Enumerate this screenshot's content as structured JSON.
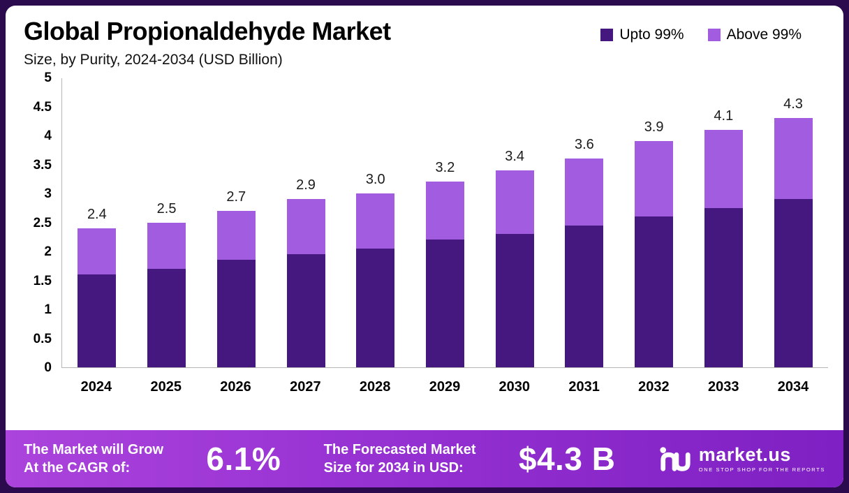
{
  "header": {
    "title": "Global Propionaldehyde Market",
    "subtitle": "Size, by Purity, 2024-2034 (USD Billion)"
  },
  "legend": [
    {
      "label": "Upto 99%",
      "color": "#44187f"
    },
    {
      "label": "Above 99%",
      "color": "#a15ce0"
    }
  ],
  "chart_data": {
    "type": "bar",
    "stacked": true,
    "title": "Global Propionaldehyde Market Size, by Purity, 2024-2034 (USD Billion)",
    "categories": [
      "2024",
      "2025",
      "2026",
      "2027",
      "2028",
      "2029",
      "2030",
      "2031",
      "2032",
      "2033",
      "2034"
    ],
    "series": [
      {
        "name": "Upto 99%",
        "color": "#44187f",
        "values": [
          1.6,
          1.7,
          1.85,
          1.95,
          2.05,
          2.2,
          2.3,
          2.45,
          2.6,
          2.75,
          2.9
        ]
      },
      {
        "name": "Above 99%",
        "color": "#a15ce0",
        "values": [
          0.8,
          0.8,
          0.85,
          0.95,
          0.95,
          1.0,
          1.1,
          1.15,
          1.3,
          1.35,
          1.4
        ]
      }
    ],
    "totals": [
      2.4,
      2.5,
      2.7,
      2.9,
      3.0,
      3.2,
      3.4,
      3.6,
      3.9,
      4.1,
      4.3
    ],
    "total_labels": [
      "2.4",
      "2.5",
      "2.7",
      "2.9",
      "3.0",
      "3.2",
      "3.4",
      "3.6",
      "3.9",
      "4.1",
      "4.3"
    ],
    "xlabel": "",
    "ylabel": "",
    "ylim": [
      0,
      5
    ],
    "yticks": [
      "5",
      "4.5",
      "4",
      "3.5",
      "3",
      "2.5",
      "2",
      "1.5",
      "1",
      "0.5",
      "0"
    ],
    "grid": false,
    "legend_position": "top-right"
  },
  "footer": {
    "cagr_label_line1": "The Market will Grow",
    "cagr_label_line2": "At the CAGR of:",
    "cagr_value": "6.1%",
    "forecast_label_line1": "The Forecasted Market",
    "forecast_label_line2": "Size for 2034 in USD:",
    "forecast_value": "$4.3 B",
    "brand_name": "market.us",
    "brand_tagline": "ONE STOP SHOP FOR THE REPORTS"
  }
}
